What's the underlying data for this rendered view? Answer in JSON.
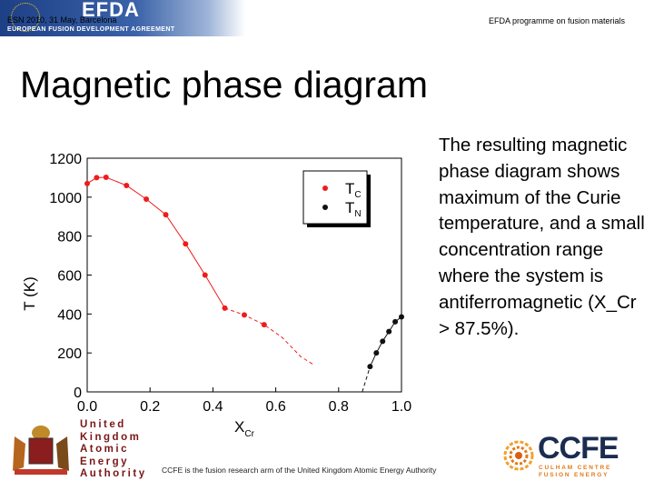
{
  "header": {
    "logo": "EFDA",
    "agreement": "EUROPEAN FUSION DEVELOPMENT AGREEMENT",
    "conference": "ESN 2010, 31 May, Barcelona",
    "programme": "EFDA programme on fusion materials"
  },
  "slide": {
    "title": "Magnetic phase diagram",
    "body": "The resulting magnetic phase diagram shows maximum of the Curie temperature, and a small concentration range where the system is antiferromagnetic (X_Cr > 87.5%)."
  },
  "footer": {
    "note": "CCFE is the fusion research arm of the United Kingdom Atomic Energy Authority",
    "ukaea_lines": [
      "United",
      "Kingdom",
      "Atomic",
      "Energy",
      "Authority"
    ],
    "ccfe_logo": "CCFE",
    "ccfe_sub_lines": [
      "CULHAM CENTRE",
      "FUSION ENERGY"
    ]
  },
  "colors": {
    "tc_series": "#ee1c1c",
    "tn_series": "#111111",
    "title_text": "#000000",
    "ukaea_text": "#7a1616",
    "ccfe_navy": "#1a2c4f",
    "ccfe_orange": "#e07a1a"
  },
  "chart_data": {
    "type": "scatter",
    "xlabel": "X",
    "xlabel_sub": "Cr",
    "ylabel": "T (K)",
    "xlim": [
      0.0,
      1.0
    ],
    "ylim": [
      0,
      1200
    ],
    "xticks": [
      "0.0",
      "0.2",
      "0.4",
      "0.6",
      "0.8",
      "1.0"
    ],
    "yticks": [
      "0",
      "200",
      "400",
      "600",
      "800",
      "1000",
      "1200"
    ],
    "legend_position": "top-right",
    "grid": false,
    "series": [
      {
        "name": "T",
        "name_sub": "C",
        "color": "#ee1c1c",
        "points": [
          [
            0.0,
            1070
          ],
          [
            0.03,
            1100
          ],
          [
            0.06,
            1102
          ],
          [
            0.125,
            1060
          ],
          [
            0.188,
            990
          ],
          [
            0.25,
            910
          ],
          [
            0.313,
            760
          ],
          [
            0.375,
            600
          ],
          [
            0.438,
            430
          ],
          [
            0.5,
            395
          ],
          [
            0.563,
            345
          ]
        ],
        "line_solid": [
          [
            0.0,
            1070
          ],
          [
            0.03,
            1100
          ],
          [
            0.06,
            1102
          ],
          [
            0.125,
            1060
          ],
          [
            0.188,
            990
          ],
          [
            0.25,
            910
          ],
          [
            0.313,
            760
          ],
          [
            0.375,
            600
          ],
          [
            0.438,
            430
          ]
        ],
        "line_dashed": [
          [
            0.438,
            430
          ],
          [
            0.5,
            395
          ],
          [
            0.563,
            345
          ],
          [
            0.62,
            280
          ],
          [
            0.68,
            180
          ],
          [
            0.72,
            140
          ]
        ]
      },
      {
        "name": "T",
        "name_sub": "N",
        "color": "#111111",
        "points": [
          [
            0.9,
            130
          ],
          [
            0.92,
            200
          ],
          [
            0.94,
            260
          ],
          [
            0.96,
            310
          ],
          [
            0.98,
            360
          ],
          [
            1.0,
            385
          ]
        ],
        "line_solid": [
          [
            0.9,
            130
          ],
          [
            0.92,
            200
          ],
          [
            0.94,
            260
          ],
          [
            0.96,
            310
          ],
          [
            0.98,
            360
          ],
          [
            1.0,
            385
          ]
        ],
        "line_dashed": [
          [
            0.875,
            0
          ],
          [
            0.9,
            130
          ]
        ]
      }
    ]
  }
}
